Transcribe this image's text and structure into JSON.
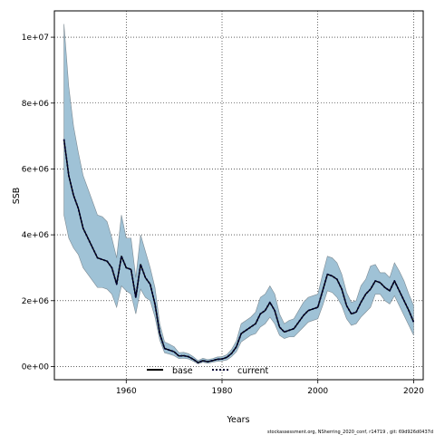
{
  "chart_data": {
    "type": "area",
    "xlabel": "Years",
    "ylabel": "SSB",
    "xlim": [
      1945,
      2022
    ],
    "ylim": [
      -400000,
      10800000
    ],
    "xticks": [
      1960,
      1980,
      2000,
      2020
    ],
    "yticks": [
      0,
      2000000,
      4000000,
      6000000,
      8000000,
      10000000
    ],
    "ytick_labels": [
      "0e+00",
      "2e+06",
      "4e+06",
      "6e+06",
      "8e+06",
      "1e+07"
    ],
    "grid": true,
    "legend_position": "bottom-center",
    "colors": {
      "band_fill": "#9fc2d6",
      "band_edge": "#7c8a93",
      "current_line": "#000033",
      "base_line": "#000000",
      "grid": "#000000"
    },
    "series": [
      {
        "name": "base",
        "style": "solid",
        "x": [
          1947,
          1948,
          1949,
          1950,
          1951,
          1952,
          1953,
          1954,
          1955,
          1956,
          1957,
          1958,
          1959,
          1960,
          1961,
          1962,
          1963,
          1964,
          1965,
          1966,
          1967,
          1968,
          1969,
          1970,
          1971,
          1972,
          1973,
          1974,
          1975,
          1976,
          1977,
          1978,
          1979,
          1980,
          1981,
          1982,
          1983,
          1984,
          1985,
          1986,
          1987,
          1988,
          1989,
          1990,
          1991,
          1992,
          1993,
          1994,
          1995,
          1996,
          1997,
          1998,
          1999,
          2000,
          2001,
          2002,
          2003,
          2004,
          2005,
          2006,
          2007,
          2008,
          2009,
          2010,
          2011,
          2012,
          2013,
          2014,
          2015,
          2016,
          2017,
          2018,
          2019,
          2020
        ],
        "values": [
          6900000,
          5800000,
          5200000,
          4800000,
          4200000,
          3900000,
          3600000,
          3300000,
          3250000,
          3200000,
          3000000,
          2500000,
          3350000,
          3000000,
          2950000,
          2100000,
          3100000,
          2700000,
          2500000,
          1900000,
          1000000,
          550000,
          500000,
          450000,
          320000,
          330000,
          300000,
          220000,
          120000,
          180000,
          150000,
          180000,
          220000,
          230000,
          280000,
          400000,
          600000,
          1000000,
          1100000,
          1200000,
          1300000,
          1600000,
          1700000,
          1950000,
          1700000,
          1200000,
          1050000,
          1100000,
          1150000,
          1350000,
          1550000,
          1700000,
          1750000,
          1800000,
          2300000,
          2800000,
          2750000,
          2650000,
          2350000,
          1850000,
          1600000,
          1650000,
          1950000,
          2200000,
          2350000,
          2600000,
          2550000,
          2400000,
          2300000,
          2600000,
          2300000,
          2000000,
          1700000,
          1350000
        ]
      },
      {
        "name": "current",
        "style": "dotted",
        "x": [
          1947,
          1948,
          1949,
          1950,
          1951,
          1952,
          1953,
          1954,
          1955,
          1956,
          1957,
          1958,
          1959,
          1960,
          1961,
          1962,
          1963,
          1964,
          1965,
          1966,
          1967,
          1968,
          1969,
          1970,
          1971,
          1972,
          1973,
          1974,
          1975,
          1976,
          1977,
          1978,
          1979,
          1980,
          1981,
          1982,
          1983,
          1984,
          1985,
          1986,
          1987,
          1988,
          1989,
          1990,
          1991,
          1992,
          1993,
          1994,
          1995,
          1996,
          1997,
          1998,
          1999,
          2000,
          2001,
          2002,
          2003,
          2004,
          2005,
          2006,
          2007,
          2008,
          2009,
          2010,
          2011,
          2012,
          2013,
          2014,
          2015,
          2016,
          2017,
          2018,
          2019,
          2020
        ],
        "values": [
          6900000,
          5800000,
          5200000,
          4800000,
          4200000,
          3900000,
          3600000,
          3300000,
          3250000,
          3200000,
          3000000,
          2500000,
          3350000,
          3000000,
          2950000,
          2100000,
          3100000,
          2700000,
          2500000,
          1900000,
          1000000,
          550000,
          500000,
          450000,
          320000,
          330000,
          300000,
          220000,
          120000,
          180000,
          150000,
          180000,
          220000,
          230000,
          280000,
          400000,
          600000,
          1000000,
          1100000,
          1200000,
          1300000,
          1600000,
          1700000,
          1950000,
          1700000,
          1200000,
          1050000,
          1100000,
          1150000,
          1350000,
          1550000,
          1700000,
          1750000,
          1800000,
          2300000,
          2800000,
          2750000,
          2650000,
          2350000,
          1850000,
          1600000,
          1650000,
          1950000,
          2200000,
          2350000,
          2600000,
          2550000,
          2400000,
          2300000,
          2600000,
          2300000,
          2000000,
          1700000,
          1350000
        ]
      }
    ],
    "band": {
      "x": [
        1947,
        1948,
        1949,
        1950,
        1951,
        1952,
        1953,
        1954,
        1955,
        1956,
        1957,
        1958,
        1959,
        1960,
        1961,
        1962,
        1963,
        1964,
        1965,
        1966,
        1967,
        1968,
        1969,
        1970,
        1971,
        1972,
        1973,
        1974,
        1975,
        1976,
        1977,
        1978,
        1979,
        1980,
        1981,
        1982,
        1983,
        1984,
        1985,
        1986,
        1987,
        1988,
        1989,
        1990,
        1991,
        1992,
        1993,
        1994,
        1995,
        1996,
        1997,
        1998,
        1999,
        2000,
        2001,
        2002,
        2003,
        2004,
        2005,
        2006,
        2007,
        2008,
        2009,
        2010,
        2011,
        2012,
        2013,
        2014,
        2015,
        2016,
        2017,
        2018,
        2019,
        2020
      ],
      "upper": [
        10400000,
        8500000,
        7300000,
        6500000,
        5800000,
        5400000,
        5000000,
        4600000,
        4550000,
        4400000,
        3900000,
        3300000,
        4600000,
        3900000,
        3900000,
        2700000,
        4000000,
        3500000,
        3000000,
        2400000,
        1300000,
        750000,
        680000,
        600000,
        420000,
        430000,
        390000,
        300000,
        180000,
        250000,
        210000,
        240000,
        290000,
        300000,
        360000,
        520000,
        780000,
        1300000,
        1400000,
        1500000,
        1650000,
        2100000,
        2200000,
        2450000,
        2200000,
        1600000,
        1300000,
        1400000,
        1450000,
        1700000,
        1950000,
        2100000,
        2150000,
        2200000,
        2800000,
        3350000,
        3300000,
        3150000,
        2800000,
        2250000,
        1950000,
        2000000,
        2450000,
        2650000,
        3050000,
        3100000,
        2850000,
        2850000,
        2700000,
        3150000,
        2900000,
        2600000,
        2200000,
        1850000
      ],
      "lower": [
        4600000,
        3900000,
        3600000,
        3400000,
        3000000,
        2800000,
        2600000,
        2400000,
        2400000,
        2350000,
        2200000,
        1800000,
        2450000,
        2300000,
        2200000,
        1600000,
        2350000,
        2100000,
        2000000,
        1500000,
        800000,
        420000,
        380000,
        330000,
        240000,
        250000,
        230000,
        160000,
        80000,
        130000,
        100000,
        130000,
        160000,
        170000,
        200000,
        300000,
        450000,
        750000,
        850000,
        950000,
        1000000,
        1200000,
        1300000,
        1500000,
        1300000,
        950000,
        850000,
        900000,
        900000,
        1050000,
        1200000,
        1350000,
        1400000,
        1450000,
        1850000,
        2300000,
        2250000,
        2100000,
        1850000,
        1450000,
        1250000,
        1300000,
        1500000,
        1650000,
        1800000,
        2200000,
        2200000,
        2000000,
        1900000,
        2150000,
        1850000,
        1550000,
        1250000,
        950000
      ]
    }
  },
  "legend": {
    "items": [
      {
        "label": "base"
      },
      {
        "label": "current"
      }
    ]
  },
  "footer": "stockassessment.org, NSherring_2020_conf, r14719 , git: 69d926d0437d"
}
